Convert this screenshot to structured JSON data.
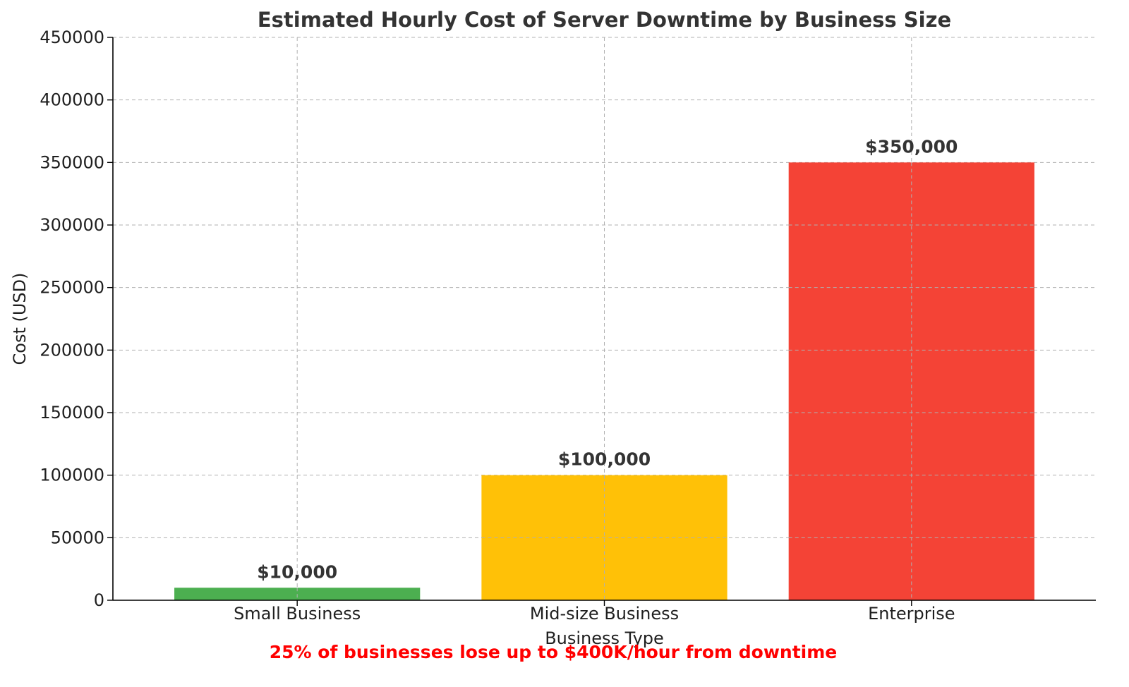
{
  "chart_data": {
    "type": "bar",
    "title": "Estimated Hourly Cost of Server Downtime by Business Size",
    "xlabel": "Business Type",
    "ylabel": "Cost (USD)",
    "categories": [
      "Small Business",
      "Mid-size Business",
      "Enterprise"
    ],
    "values": [
      10000,
      100000,
      350000
    ],
    "data_labels": [
      "$10,000",
      "$100,000",
      "$350,000"
    ],
    "colors": [
      "#4caf50",
      "#ffc107",
      "#f44336"
    ],
    "ylim": [
      0,
      450000
    ],
    "yticks": [
      0,
      50000,
      100000,
      150000,
      200000,
      250000,
      300000,
      350000,
      400000,
      450000
    ],
    "ytick_labels": [
      "0",
      "50000",
      "100000",
      "150000",
      "200000",
      "250000",
      "300000",
      "350000",
      "400000",
      "450000"
    ],
    "grid": true,
    "footnote": "25% of businesses lose up to $400K/hour from downtime",
    "footnote_color": "#ff0000"
  }
}
